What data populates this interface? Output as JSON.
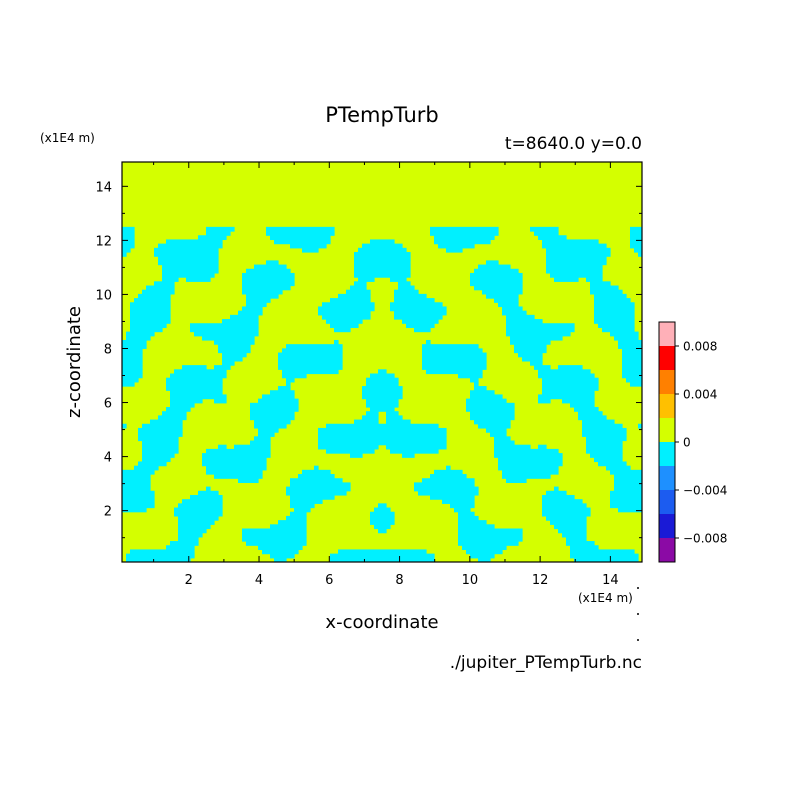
{
  "chart_data": {
    "type": "heatmap",
    "title": "PTempTurb",
    "subtitle": "t=8640.0 y=0.0",
    "xlabel": "x-coordinate",
    "ylabel": "z-coordinate",
    "x_unit": "(x1E4 m)",
    "z_unit": "(x1E4 m)",
    "source": "./jupiter_PTempTurb.nc",
    "xlim": [
      0.1,
      14.9
    ],
    "ylim": [
      0.1,
      14.9
    ],
    "x_ticks": [
      "2",
      "4",
      "6",
      "8",
      "10",
      "12",
      "14"
    ],
    "y_ticks": [
      "2",
      "4",
      "6",
      "8",
      "10",
      "12",
      "14"
    ],
    "x_tick_values": [
      2,
      4,
      6,
      8,
      10,
      12,
      14
    ],
    "y_tick_values": [
      2,
      4,
      6,
      8,
      10,
      12,
      14
    ],
    "turbulence_top": 12.5,
    "colorbar": {
      "levels": [
        -0.01,
        -0.008,
        -0.006,
        -0.004,
        -0.002,
        0,
        0.002,
        0.004,
        0.006,
        0.008,
        0.01
      ],
      "colors": [
        "#8b0aa5",
        "#1a1ad6",
        "#1c5cf0",
        "#1e90ff",
        "#00f0ff",
        "#d4ff00",
        "#ffc000",
        "#ff8000",
        "#ff0000",
        "#ffb0b8"
      ],
      "tick_labels": [
        "0.008",
        "0.004",
        "0",
        "−0.004",
        "−0.008"
      ],
      "tick_values": [
        0.008,
        0.004,
        0,
        -0.004,
        -0.008
      ]
    }
  }
}
